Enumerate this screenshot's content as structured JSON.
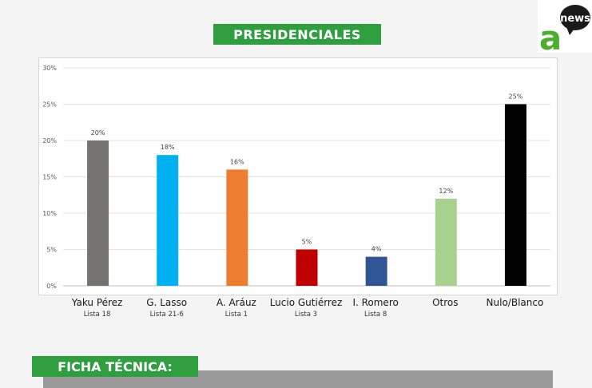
{
  "header": {
    "title": "PRESIDENCIALES"
  },
  "logo": {
    "brand_text": "news",
    "brand_letter": "a",
    "accent": "#2f9e3f",
    "bubble": "#1a1a1a"
  },
  "ficha": {
    "title": "FICHA TÉCNICA:"
  },
  "chart_data": {
    "type": "bar",
    "title": "",
    "xlabel": "",
    "ylabel": "",
    "ylim": [
      0,
      30
    ],
    "yticks": [
      "0%",
      "5%",
      "10%",
      "15%",
      "20%",
      "25%",
      "30%"
    ],
    "grid": true,
    "categories": [
      "Yaku Pérez",
      "G. Lasso",
      "A. Aráuz",
      "Lucio Gutiérrez",
      "I. Romero",
      "Otros",
      "Nulo/Blanco"
    ],
    "sublabels": [
      "Lista 18",
      "Lista 21-6",
      "Lista 1",
      "Lista 3",
      "Lista 8",
      "",
      ""
    ],
    "values": [
      20,
      18,
      16,
      5,
      4,
      12,
      25
    ],
    "value_labels": [
      "20%",
      "18%",
      "16%",
      "5%",
      "4%",
      "12%",
      "25%"
    ],
    "colors": [
      "#767171",
      "#00b0f0",
      "#ed7d31",
      "#c00000",
      "#2f5597",
      "#a9d18e",
      "#000000"
    ]
  }
}
